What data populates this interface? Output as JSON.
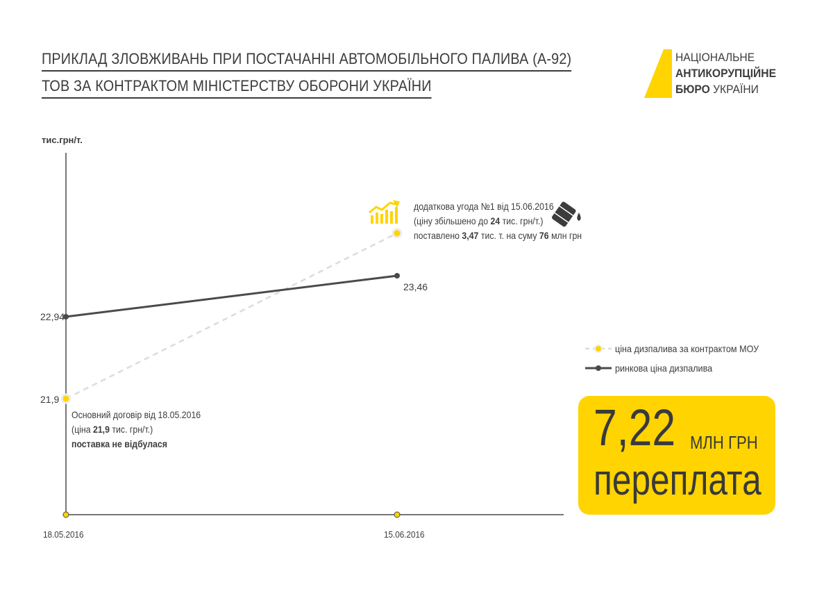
{
  "header": {
    "title_line1": "ПРИКЛАД ЗЛОВЖИВАНЬ ПРИ ПОСТАЧАННІ АВТОМОБІЛЬНОГО  ПАЛИВА (А-92)",
    "title_line2": "ТОВ ЗА КОНТРАКТОМ МІНІСТЕРСТВУ ОБОРОНИ УКРАЇНИ"
  },
  "logo": {
    "line1": "НАЦІОНАЛЬНЕ",
    "line2": "АНТИКОРУПЦІЙНЕ",
    "line3_bold": "БЮРО",
    "line3_rest": " УКРАЇНИ",
    "color": "#ffd400"
  },
  "chart_data": {
    "type": "line",
    "ylabel": "тис.грн/т.",
    "x": [
      "18.05.2016",
      "15.06.2016"
    ],
    "series": [
      {
        "name": "ціна дизпалива за контрактом МОУ",
        "values": [
          21.9,
          24
        ],
        "style": "dashed",
        "color": "#dcdcdc",
        "marker": "#ffd400"
      },
      {
        "name": "ринкова ціна дизпалива",
        "values": [
          22.94,
          23.46
        ],
        "style": "solid",
        "color": "#4a4a4a",
        "marker": "#4a4a4a"
      }
    ],
    "data_labels": [
      "22,94",
      "21,9",
      "23,46"
    ]
  },
  "annotations": {
    "start": {
      "line1": "Основний договір від 18.05.2016",
      "line2_pre": "(ціна ",
      "line2_bold": "21,9",
      "line2_post": " тис. грн/т.)",
      "line3_bold": "поставка не відбулася"
    },
    "end": {
      "line1": "додаткова угода №1 від 15.06.2016",
      "line2_pre": "(ціну збільшено до ",
      "line2_bold": "24",
      "line2_post": " тис. грн/т.)",
      "line3_pre": "поставлено ",
      "line3_bold1": "3,47",
      "line3_mid": " тис. т. на суму ",
      "line3_bold2": "76",
      "line3_post": " млн грн"
    }
  },
  "callout": {
    "amount": "7,22",
    "unit": "МЛН ГРН",
    "label": "переплата",
    "background": "#ffd400"
  },
  "icons": [
    "growth-chart-icon",
    "oil-barrel-icon"
  ]
}
